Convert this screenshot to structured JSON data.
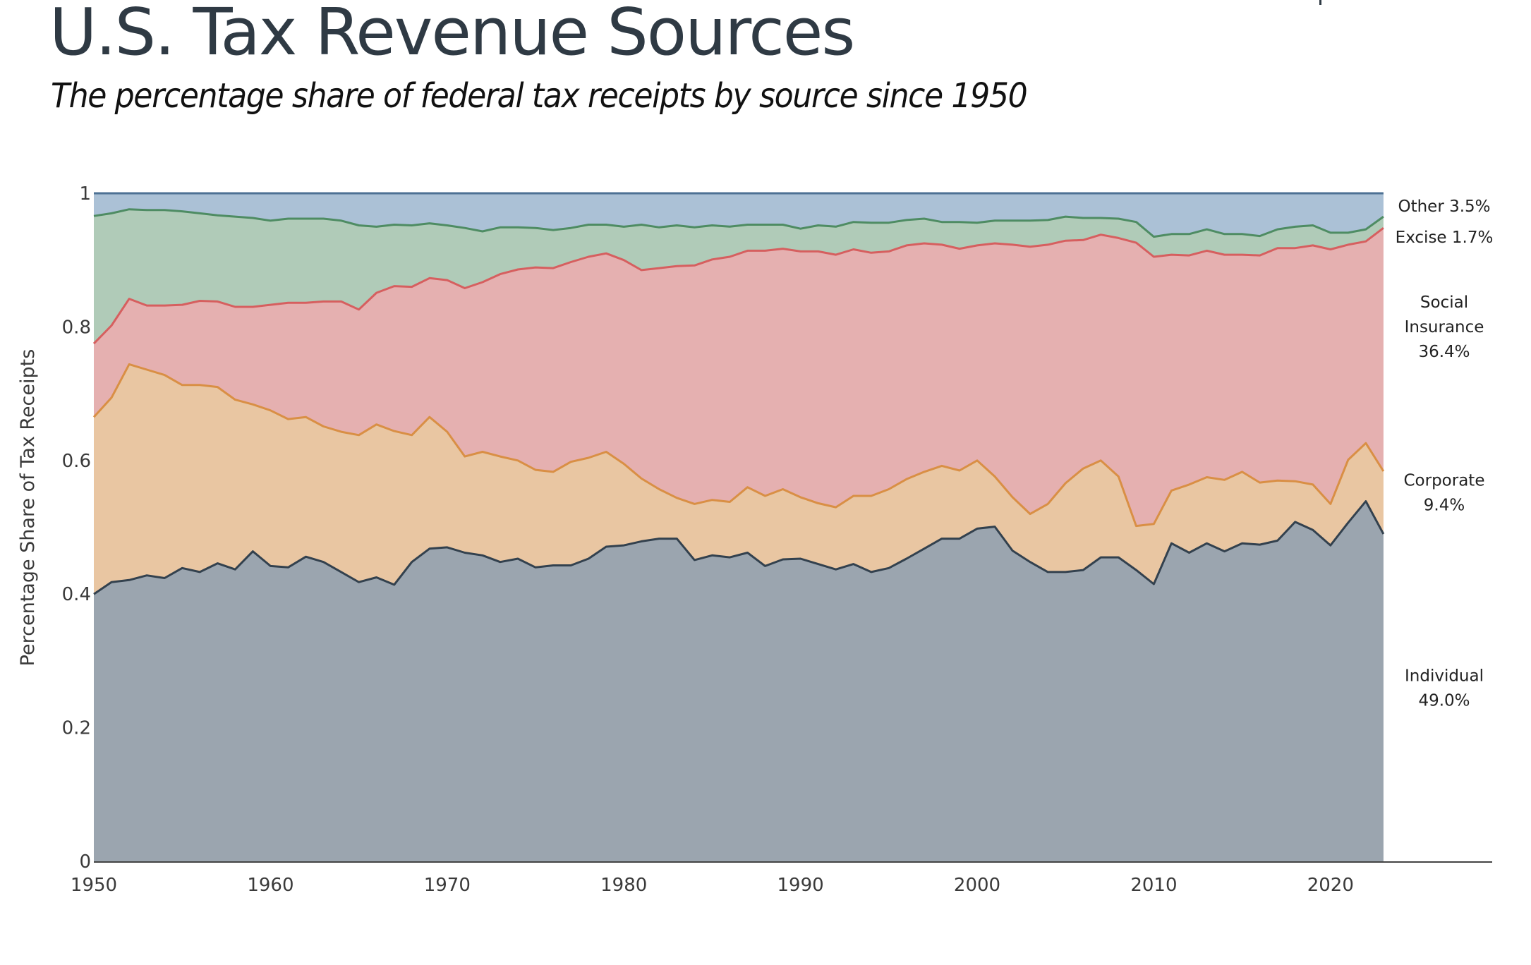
{
  "header": {
    "title": "U.S. Tax Revenue Sources",
    "subtitle": "The percentage share of federal tax receipts by source since 1950"
  },
  "chart_data": {
    "type": "area",
    "stacked": true,
    "title": "U.S. Tax Revenue Sources",
    "subtitle": "The percentage share of federal tax receipts by source since 1950",
    "xlabel": "",
    "ylabel": "Percentage Share of Tax Receipts",
    "xlim": [
      1950,
      2029
    ],
    "ylim": [
      0,
      1
    ],
    "x_ticks": [
      "1950",
      "1960",
      "1970",
      "1980",
      "1990",
      "2000",
      "2010",
      "2020"
    ],
    "y_ticks": [
      "0",
      "0.2",
      "0.4",
      "0.6",
      "0.8",
      "1"
    ],
    "grid": false,
    "legend": "direct-labels-right",
    "x": [
      1950,
      1951,
      1952,
      1953,
      1954,
      1955,
      1956,
      1957,
      1958,
      1959,
      1960,
      1961,
      1962,
      1963,
      1964,
      1965,
      1966,
      1967,
      1968,
      1969,
      1970,
      1971,
      1972,
      1973,
      1974,
      1975,
      1976,
      1977,
      1978,
      1979,
      1980,
      1981,
      1982,
      1983,
      1984,
      1985,
      1986,
      1987,
      1988,
      1989,
      1990,
      1991,
      1992,
      1993,
      1994,
      1995,
      1996,
      1997,
      1998,
      1999,
      2000,
      2001,
      2002,
      2003,
      2004,
      2005,
      2006,
      2007,
      2008,
      2009,
      2010,
      2011,
      2012,
      2013,
      2014,
      2015,
      2016,
      2017,
      2018,
      2019,
      2020,
      2021,
      2022,
      2023
    ],
    "series": [
      {
        "name": "Individual",
        "end_label": [
          "Individual",
          "49.0%"
        ],
        "fill": "#9ba5af",
        "line": "#33414e",
        "values": [
          0.4,
          0.418,
          0.421,
          0.428,
          0.424,
          0.439,
          0.433,
          0.446,
          0.437,
          0.464,
          0.442,
          0.44,
          0.456,
          0.448,
          0.433,
          0.418,
          0.425,
          0.414,
          0.448,
          0.468,
          0.47,
          0.462,
          0.458,
          0.448,
          0.453,
          0.44,
          0.443,
          0.443,
          0.453,
          0.471,
          0.473,
          0.479,
          0.483,
          0.483,
          0.451,
          0.458,
          0.455,
          0.462,
          0.442,
          0.452,
          0.453,
          0.445,
          0.437,
          0.445,
          0.433,
          0.439,
          0.453,
          0.468,
          0.483,
          0.483,
          0.498,
          0.501,
          0.465,
          0.448,
          0.433,
          0.433,
          0.436,
          0.455,
          0.455,
          0.436,
          0.415,
          0.476,
          0.462,
          0.476,
          0.464,
          0.476,
          0.474,
          0.48,
          0.508,
          0.496,
          0.473,
          0.507,
          0.539,
          0.49
        ]
      },
      {
        "name": "Corporate",
        "end_label": [
          "Corporate",
          "9.4%"
        ],
        "fill": "#e9c6a2",
        "line": "#d98f45",
        "values": [
          0.265,
          0.276,
          0.323,
          0.308,
          0.304,
          0.274,
          0.28,
          0.264,
          0.254,
          0.22,
          0.233,
          0.222,
          0.209,
          0.203,
          0.21,
          0.22,
          0.229,
          0.23,
          0.19,
          0.197,
          0.173,
          0.144,
          0.155,
          0.158,
          0.147,
          0.146,
          0.14,
          0.155,
          0.151,
          0.142,
          0.122,
          0.094,
          0.074,
          0.061,
          0.084,
          0.083,
          0.083,
          0.098,
          0.105,
          0.105,
          0.092,
          0.091,
          0.093,
          0.102,
          0.114,
          0.118,
          0.119,
          0.115,
          0.109,
          0.102,
          0.102,
          0.075,
          0.08,
          0.072,
          0.102,
          0.133,
          0.152,
          0.145,
          0.121,
          0.066,
          0.09,
          0.079,
          0.102,
          0.099,
          0.107,
          0.107,
          0.093,
          0.09,
          0.061,
          0.068,
          0.062,
          0.094,
          0.087,
          0.094
        ]
      },
      {
        "name": "Social Insurance",
        "end_label": [
          "Social",
          "Insurance",
          "36.4%"
        ],
        "fill": "#e5b0b0",
        "line": "#d65f5f",
        "values": [
          0.11,
          0.108,
          0.098,
          0.096,
          0.104,
          0.12,
          0.126,
          0.128,
          0.139,
          0.146,
          0.158,
          0.174,
          0.171,
          0.187,
          0.195,
          0.188,
          0.197,
          0.217,
          0.222,
          0.208,
          0.227,
          0.252,
          0.254,
          0.273,
          0.286,
          0.303,
          0.305,
          0.299,
          0.301,
          0.297,
          0.305,
          0.312,
          0.331,
          0.347,
          0.357,
          0.36,
          0.367,
          0.354,
          0.367,
          0.36,
          0.368,
          0.377,
          0.378,
          0.369,
          0.364,
          0.356,
          0.35,
          0.342,
          0.331,
          0.332,
          0.322,
          0.349,
          0.378,
          0.4,
          0.388,
          0.363,
          0.342,
          0.338,
          0.357,
          0.424,
          0.4,
          0.353,
          0.343,
          0.339,
          0.337,
          0.325,
          0.34,
          0.348,
          0.349,
          0.358,
          0.381,
          0.322,
          0.302,
          0.364
        ]
      },
      {
        "name": "Excise",
        "end_label": [
          "Excise  1.7%"
        ],
        "fill": "#b0cbb8",
        "line": "#4e8c63",
        "values": [
          0.191,
          0.168,
          0.134,
          0.143,
          0.143,
          0.14,
          0.131,
          0.129,
          0.135,
          0.133,
          0.126,
          0.126,
          0.126,
          0.124,
          0.121,
          0.126,
          0.099,
          0.092,
          0.092,
          0.082,
          0.082,
          0.09,
          0.076,
          0.07,
          0.063,
          0.059,
          0.057,
          0.051,
          0.048,
          0.043,
          0.05,
          0.068,
          0.061,
          0.061,
          0.057,
          0.051,
          0.045,
          0.039,
          0.039,
          0.036,
          0.034,
          0.039,
          0.042,
          0.041,
          0.045,
          0.043,
          0.038,
          0.037,
          0.034,
          0.04,
          0.034,
          0.034,
          0.036,
          0.039,
          0.037,
          0.036,
          0.033,
          0.025,
          0.029,
          0.031,
          0.03,
          0.031,
          0.032,
          0.032,
          0.031,
          0.031,
          0.029,
          0.028,
          0.032,
          0.03,
          0.025,
          0.018,
          0.018,
          0.017
        ]
      },
      {
        "name": "Other",
        "end_label": [
          "Other  3.5%"
        ],
        "fill": "#abc1d6",
        "line": "#4d7194",
        "values": [
          0.034,
          0.03,
          0.024,
          0.025,
          0.025,
          0.027,
          0.03,
          0.033,
          0.035,
          0.037,
          0.041,
          0.038,
          0.038,
          0.038,
          0.041,
          0.048,
          0.05,
          0.047,
          0.048,
          0.045,
          0.048,
          0.052,
          0.057,
          0.051,
          0.051,
          0.052,
          0.055,
          0.052,
          0.047,
          0.047,
          0.05,
          0.047,
          0.051,
          0.048,
          0.051,
          0.048,
          0.05,
          0.047,
          0.047,
          0.047,
          0.053,
          0.048,
          0.05,
          0.043,
          0.044,
          0.044,
          0.04,
          0.038,
          0.043,
          0.043,
          0.044,
          0.041,
          0.041,
          0.041,
          0.04,
          0.035,
          0.037,
          0.037,
          0.038,
          0.043,
          0.065,
          0.061,
          0.061,
          0.054,
          0.061,
          0.061,
          0.064,
          0.054,
          0.05,
          0.048,
          0.059,
          0.059,
          0.054,
          0.035
        ]
      }
    ]
  }
}
